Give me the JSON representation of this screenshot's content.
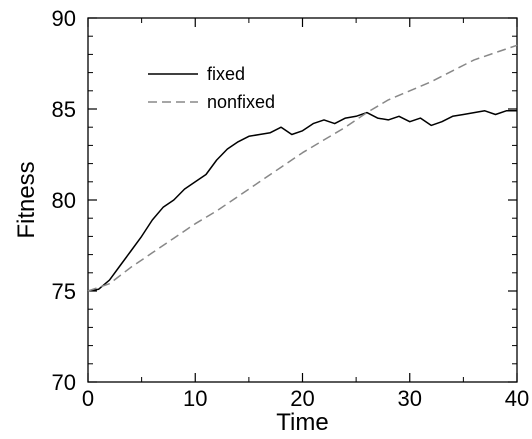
{
  "chart_data": {
    "type": "line",
    "title": "",
    "xlabel": "Time",
    "ylabel": "Fitness",
    "xlim": [
      0,
      40
    ],
    "ylim": [
      70,
      90
    ],
    "x_ticks": [
      0,
      10,
      20,
      30,
      40
    ],
    "x_tick_labels": [
      "0",
      "10",
      "20",
      "30",
      "40"
    ],
    "y_ticks": [
      70,
      75,
      80,
      85,
      90
    ],
    "y_tick_labels": [
      "70",
      "75",
      "80",
      "85",
      "90"
    ],
    "grid": false,
    "legend_position": "top-left",
    "series": [
      {
        "name": "fixed",
        "color": "#000000",
        "dash": "solid",
        "x": [
          0,
          1,
          2,
          3,
          4,
          5,
          6,
          7,
          8,
          9,
          10,
          11,
          12,
          13,
          14,
          15,
          16,
          17,
          18,
          19,
          20,
          21,
          22,
          23,
          24,
          25,
          26,
          27,
          28,
          29,
          30,
          31,
          32,
          33,
          34,
          35,
          36,
          37,
          38,
          39,
          40
        ],
        "y": [
          75.0,
          75.1,
          75.6,
          76.4,
          77.2,
          78.0,
          78.9,
          79.6,
          80.0,
          80.6,
          81.0,
          81.4,
          82.2,
          82.8,
          83.2,
          83.5,
          83.6,
          83.7,
          84.0,
          83.6,
          83.8,
          84.2,
          84.4,
          84.2,
          84.5,
          84.6,
          84.8,
          84.5,
          84.4,
          84.6,
          84.3,
          84.5,
          84.1,
          84.3,
          84.6,
          84.7,
          84.8,
          84.9,
          84.7,
          84.9,
          84.9
        ]
      },
      {
        "name": "nonfixed",
        "color": "#888888",
        "dash": "dashed",
        "x": [
          0,
          2,
          4,
          6,
          8,
          10,
          12,
          14,
          16,
          18,
          20,
          22,
          24,
          26,
          28,
          30,
          32,
          34,
          36,
          38,
          40
        ],
        "y": [
          75.0,
          75.4,
          76.3,
          77.1,
          77.9,
          78.7,
          79.4,
          80.2,
          81.0,
          81.8,
          82.6,
          83.3,
          84.0,
          84.8,
          85.5,
          86.0,
          86.5,
          87.1,
          87.7,
          88.1,
          88.5
        ]
      }
    ]
  }
}
